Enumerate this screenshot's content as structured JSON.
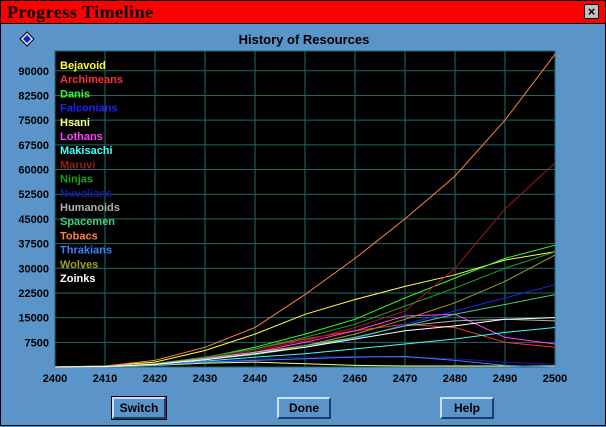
{
  "window": {
    "title": "Progress Timeline",
    "close_glyph": "×"
  },
  "buttons": {
    "switch": "Switch",
    "done": "Done",
    "help": "Help"
  },
  "chart_data": {
    "type": "line",
    "title": "History of Resources",
    "xlabel": "",
    "ylabel": "",
    "xlim": [
      2400,
      2500
    ],
    "ylim": [
      0,
      96000
    ],
    "x_ticks": [
      2400,
      2410,
      2420,
      2430,
      2440,
      2450,
      2460,
      2470,
      2480,
      2490,
      2500
    ],
    "y_ticks": [
      7500,
      15000,
      22500,
      30000,
      37500,
      45000,
      52500,
      60000,
      67500,
      75000,
      82500,
      90000
    ],
    "grid": true,
    "legend_placement": "top-left",
    "colors": {
      "background": "#000000",
      "grid": "#1f6b6b",
      "axis_text": "#000000"
    },
    "x": [
      2400,
      2410,
      2420,
      2430,
      2440,
      2450,
      2460,
      2470,
      2480,
      2490,
      2500
    ],
    "series": [
      {
        "name": "Bejavoid",
        "color": "#ffff40",
        "values": [
          0,
          300,
          1500,
          5000,
          10000,
          16000,
          20500,
          24500,
          28000,
          32500,
          35000
        ]
      },
      {
        "name": "Archimeans",
        "color": "#ff3030",
        "values": [
          0,
          200,
          1000,
          3000,
          5500,
          8500,
          11000,
          13000,
          12000,
          7500,
          6000
        ]
      },
      {
        "name": "Danis",
        "color": "#30ff30",
        "values": [
          0,
          200,
          1000,
          2800,
          6000,
          10000,
          14500,
          21000,
          27000,
          33000,
          37000
        ]
      },
      {
        "name": "Falconians",
        "color": "#2020ff",
        "values": [
          0,
          200,
          900,
          2500,
          4000,
          6000,
          8500,
          13000,
          17000,
          21000,
          25000
        ]
      },
      {
        "name": "Hsani",
        "color": "#ffff80",
        "values": [
          0,
          100,
          500,
          1200,
          1500,
          1000,
          500,
          300,
          300,
          300,
          300
        ]
      },
      {
        "name": "Lothans",
        "color": "#ff40ff",
        "values": [
          0,
          200,
          800,
          2500,
          4500,
          7500,
          11000,
          15500,
          16000,
          9000,
          7000
        ]
      },
      {
        "name": "Makisachi",
        "color": "#40ffff",
        "values": [
          0,
          150,
          700,
          1800,
          3000,
          4000,
          5500,
          7000,
          8500,
          10500,
          12000
        ]
      },
      {
        "name": "Maruvi",
        "color": "#a01818",
        "values": [
          0,
          200,
          1000,
          2800,
          5000,
          8000,
          12000,
          17000,
          30000,
          48000,
          62000
        ]
      },
      {
        "name": "Ninjas",
        "color": "#20a020",
        "values": [
          0,
          200,
          1000,
          3000,
          5500,
          9000,
          13000,
          18500,
          24000,
          30000,
          35000
        ]
      },
      {
        "name": "Nuvalians",
        "color": "#1818a0",
        "values": [
          0,
          150,
          700,
          1600,
          2400,
          3000,
          3200,
          3000,
          2500,
          1500,
          800
        ]
      },
      {
        "name": "Humanoids",
        "color": "#b0b0b0",
        "values": [
          0,
          200,
          900,
          2600,
          4500,
          6500,
          9000,
          12500,
          14000,
          14500,
          14000
        ]
      },
      {
        "name": "Spacemen",
        "color": "#40d080",
        "values": [
          0,
          150,
          800,
          2200,
          3800,
          6000,
          9000,
          12500,
          16000,
          19000,
          22000
        ]
      },
      {
        "name": "Tobacs",
        "color": "#ff8040",
        "values": [
          0,
          300,
          2000,
          6000,
          12000,
          22000,
          33000,
          45000,
          58000,
          75000,
          95000
        ]
      },
      {
        "name": "Thrakians",
        "color": "#4080ff",
        "values": [
          0,
          150,
          600,
          1500,
          2000,
          2500,
          3000,
          3200,
          2000,
          500,
          0
        ]
      },
      {
        "name": "Wolves",
        "color": "#a0a020",
        "values": [
          0,
          200,
          800,
          2200,
          4000,
          6500,
          10000,
          14500,
          19500,
          26000,
          34000
        ]
      },
      {
        "name": "Zoinks",
        "color": "#ffffff",
        "values": [
          0,
          150,
          800,
          2200,
          4000,
          6000,
          8500,
          11000,
          12500,
          14500,
          15000
        ]
      }
    ]
  }
}
